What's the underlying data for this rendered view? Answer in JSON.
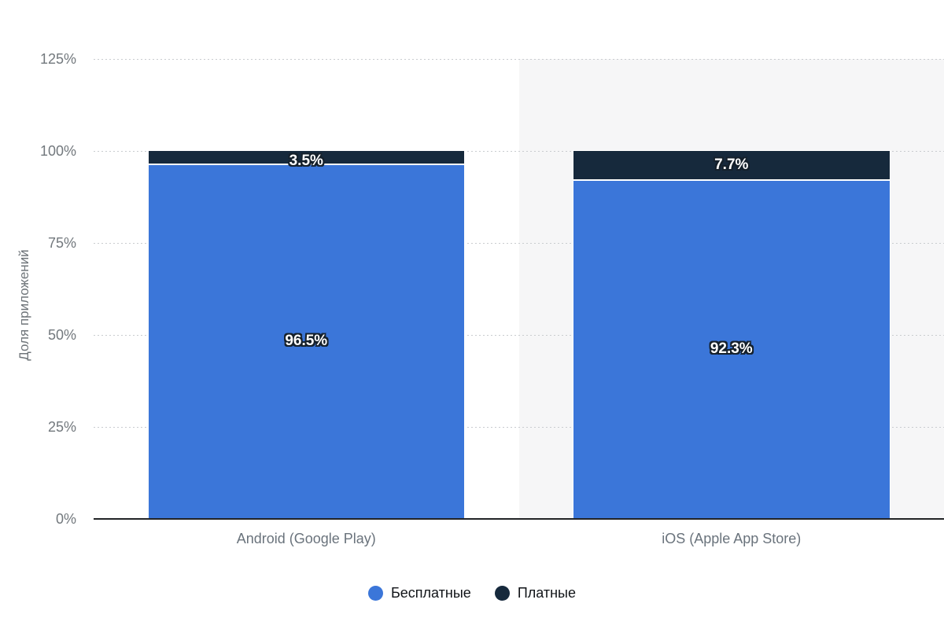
{
  "chart_data": {
    "type": "bar",
    "variant": "stacked-column-percent",
    "title": "",
    "categories": [
      "Android (Google Play)",
      "iOS (Apple App Store)"
    ],
    "series": [
      {
        "name": "Бесплатные",
        "color": "#3b76d9",
        "values": [
          96.5,
          92.3
        ],
        "labels": [
          "96.5%",
          "92.3%"
        ]
      },
      {
        "name": "Платные",
        "color": "#16293c",
        "values": [
          3.5,
          7.7
        ],
        "labels": [
          "3.5%",
          "7.7%"
        ]
      }
    ],
    "xlabel": "",
    "ylabel": "Доля приложений",
    "ylim": [
      0,
      125
    ],
    "yticks": [
      0,
      25,
      50,
      75,
      100,
      125
    ],
    "ytick_labels": [
      "0%",
      "25%",
      "50%",
      "75%",
      "100%",
      "125%"
    ],
    "grid": "horizontal dotted",
    "plot_band": "light gray column band behind second category",
    "legend_position": "bottom-center"
  },
  "colors": {
    "free_series": "#3b76d9",
    "paid_series": "#16293c",
    "plot_band": "#f6f6f7",
    "gridline": "#c9cccf",
    "axis_line": "#222426",
    "tick_text": "#72787d",
    "category_text": "#6a737c",
    "axis_title_text": "#6f757a",
    "legend_text": "#111418",
    "datalabel_text": "#ffffff",
    "datalabel_outline": "#15202b"
  }
}
